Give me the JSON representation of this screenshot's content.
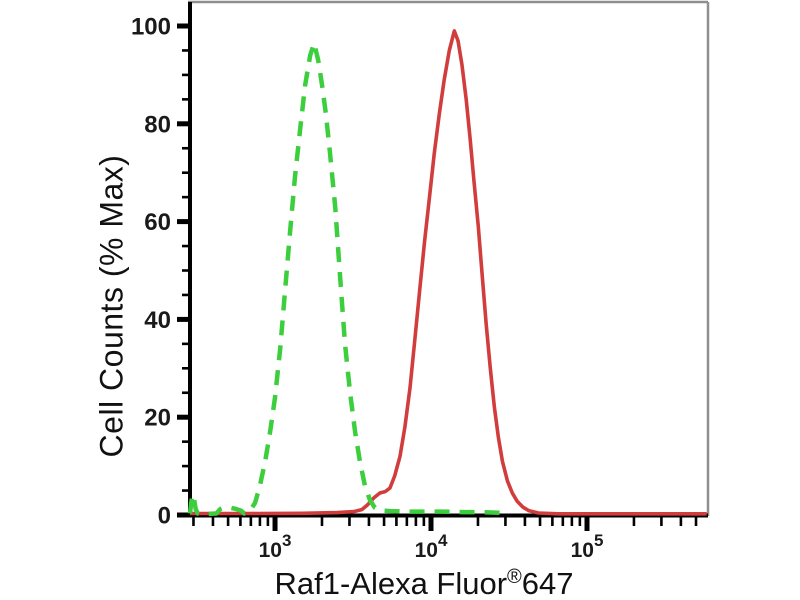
{
  "chart_data": {
    "type": "line",
    "subtype": "flow-cytometry-overlay-histogram",
    "title": "",
    "legend": "none",
    "grid": false,
    "x_axis": {
      "label_main": "Raf1-Alexa Fluor",
      "label_sup": "®",
      "label_suffix": "647",
      "scale": "log",
      "min": 285,
      "max": 588000,
      "major_ticks": [
        {
          "value": 1000,
          "base": "10",
          "exp": "3"
        },
        {
          "value": 10000,
          "base": "10",
          "exp": "4"
        },
        {
          "value": 100000,
          "base": "10",
          "exp": "5"
        }
      ],
      "minor_mantissas": [
        2,
        3,
        4,
        5,
        6,
        7,
        8,
        9
      ]
    },
    "y_axis": {
      "title": "Cell Counts (% Max)",
      "min": 0,
      "max": 100,
      "major_ticks": [
        0,
        20,
        40,
        60,
        80,
        100
      ],
      "minor_step": 5
    },
    "colors": {
      "green_series": "#3dce3d",
      "red_series": "#d13c3c",
      "axis": "#000000",
      "frame": "#8f8f8f",
      "tick_label": "#1a1a1a"
    },
    "series": [
      {
        "name": "red-solid",
        "style": "solid",
        "color": "#d13c3c",
        "peak_x": 14100,
        "peak_pct": 99,
        "points": [
          [
            285,
            0.3
          ],
          [
            700,
            0.3
          ],
          [
            1500,
            0.35
          ],
          [
            2500,
            0.5
          ],
          [
            3200,
            0.7
          ],
          [
            3600,
            1.1
          ],
          [
            3900,
            2
          ],
          [
            4300,
            3.5
          ],
          [
            4700,
            4.5
          ],
          [
            5100,
            4.8
          ],
          [
            5450,
            5.5
          ],
          [
            5850,
            8
          ],
          [
            6330,
            12
          ],
          [
            6800,
            18
          ],
          [
            7330,
            26
          ],
          [
            7880,
            36
          ],
          [
            8460,
            46
          ],
          [
            9100,
            56
          ],
          [
            9780,
            65
          ],
          [
            10500,
            74
          ],
          [
            11300,
            82
          ],
          [
            12150,
            89
          ],
          [
            13100,
            95
          ],
          [
            14100,
            99
          ],
          [
            14900,
            97
          ],
          [
            15800,
            92
          ],
          [
            16800,
            85
          ],
          [
            17800,
            77
          ],
          [
            18900,
            68
          ],
          [
            20100,
            59
          ],
          [
            21300,
            49
          ],
          [
            22600,
            39
          ],
          [
            24000,
            30
          ],
          [
            25500,
            22
          ],
          [
            27000,
            16
          ],
          [
            28700,
            11
          ],
          [
            30900,
            7
          ],
          [
            33200,
            4.5
          ],
          [
            35700,
            2.8
          ],
          [
            38900,
            1.6
          ],
          [
            42300,
            0.9
          ],
          [
            48900,
            0.4
          ],
          [
            65000,
            0.25
          ],
          [
            200000,
            0.25
          ],
          [
            585000,
            0.25
          ]
        ]
      },
      {
        "name": "green-dashed",
        "style": "dashed",
        "color": "#3dce3d",
        "peak_x": 1780,
        "peak_pct": 96.5,
        "points": [
          [
            285,
            0.3
          ],
          [
            290,
            2.5
          ],
          [
            296,
            4.2
          ],
          [
            303,
            3.2
          ],
          [
            310,
            1.2
          ],
          [
            320,
            0.3
          ],
          [
            340,
            0.15
          ],
          [
            420,
            0.3
          ],
          [
            445,
            1.2
          ],
          [
            470,
            1.5
          ],
          [
            520,
            1.5
          ],
          [
            565,
            1.2
          ],
          [
            605,
            0.9
          ],
          [
            635,
            0.3
          ],
          [
            690,
            0.8
          ],
          [
            745,
            2.5
          ],
          [
            800,
            6
          ],
          [
            865,
            11
          ],
          [
            930,
            17
          ],
          [
            1000,
            24
          ],
          [
            1080,
            34
          ],
          [
            1160,
            46
          ],
          [
            1250,
            58
          ],
          [
            1340,
            69
          ],
          [
            1450,
            79
          ],
          [
            1560,
            88
          ],
          [
            1680,
            94
          ],
          [
            1780,
            96.5
          ],
          [
            1890,
            93
          ],
          [
            2000,
            88
          ],
          [
            2120,
            82
          ],
          [
            2250,
            74
          ],
          [
            2430,
            63
          ],
          [
            2610,
            49
          ],
          [
            2810,
            35
          ],
          [
            3030,
            25
          ],
          [
            3260,
            17
          ],
          [
            3500,
            11
          ],
          [
            3770,
            6
          ],
          [
            4060,
            3
          ],
          [
            4370,
            1.5
          ],
          [
            4800,
            0.9
          ],
          [
            5500,
            0.8
          ],
          [
            7000,
            0.7
          ],
          [
            9000,
            0.7
          ],
          [
            12000,
            0.7
          ],
          [
            16000,
            0.6
          ],
          [
            21000,
            0.6
          ],
          [
            26000,
            0.5
          ],
          [
            30000,
            0.4
          ],
          [
            31500,
            0.1
          ]
        ]
      }
    ]
  }
}
